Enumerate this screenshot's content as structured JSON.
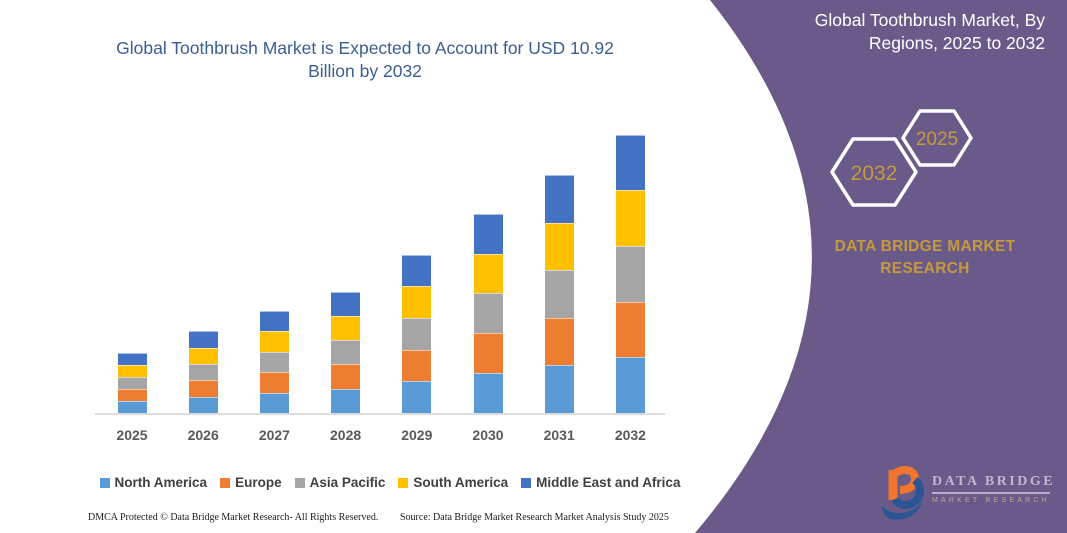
{
  "left_panel": {
    "title": "Global Toothbrush Market is Expected to Account for USD 10.92 Billion by 2032",
    "footer_left": "DMCA Protected © Data Bridge Market Research-  All Rights Reserved.",
    "footer_source": "Source: Data Bridge Market Research  Market Analysis Study 2025"
  },
  "right_panel": {
    "title": "Global Toothbrush Market, By Regions, 2025 to 2032",
    "title_lines": [
      "Global Toothbrush Market, By",
      "Regions, 2025 to 2032"
    ],
    "hexagons": [
      {
        "label": "2032"
      },
      {
        "label": "2025"
      }
    ],
    "brand_lines": [
      "DATA BRIDGE MARKET",
      "RESEARCH"
    ],
    "logo": {
      "line1": "DATA BRIDGE",
      "line2": "MARKET RESEARCH"
    },
    "colors": {
      "panel": "#695a89",
      "gold": "#c49a3d",
      "title_text": "#ffffff"
    }
  },
  "styles": {
    "title_color": "#3b5e91",
    "axis_line_color": "#dcdcdc",
    "year_label_color": "#595959",
    "legend_label_color": "#404040"
  },
  "chart_data": {
    "type": "bar",
    "stacked": true,
    "title": "Global Toothbrush Market is Expected to Account for USD 10.92 Billion by 2032",
    "categories": [
      "2025",
      "2026",
      "2027",
      "2028",
      "2029",
      "2030",
      "2031",
      "2032"
    ],
    "totals_usd_billion": [
      2.35,
      3.2,
      3.99,
      4.77,
      6.22,
      7.79,
      9.31,
      10.92
    ],
    "series": [
      {
        "name": "North America",
        "color": "#5B9BD5",
        "values": [
          0.47,
          0.64,
          0.8,
          0.95,
          1.24,
          1.56,
          1.86,
          2.18
        ]
      },
      {
        "name": "Europe",
        "color": "#ED7D31",
        "values": [
          0.47,
          0.64,
          0.8,
          0.95,
          1.24,
          1.56,
          1.86,
          2.18
        ]
      },
      {
        "name": "Asia Pacific",
        "color": "#A5A5A5",
        "values": [
          0.47,
          0.64,
          0.8,
          0.95,
          1.24,
          1.56,
          1.86,
          2.18
        ]
      },
      {
        "name": "South America",
        "color": "#FFC000",
        "values": [
          0.47,
          0.64,
          0.8,
          0.95,
          1.24,
          1.56,
          1.86,
          2.18
        ]
      },
      {
        "name": "Middle East and Africa",
        "color": "#4472C4",
        "values": [
          0.47,
          0.64,
          0.8,
          0.95,
          1.24,
          1.56,
          1.86,
          2.18
        ]
      }
    ],
    "xlabel": "",
    "ylabel": "",
    "ylim": [
      0,
      11.5
    ],
    "grid": false,
    "legend_position": "bottom"
  }
}
